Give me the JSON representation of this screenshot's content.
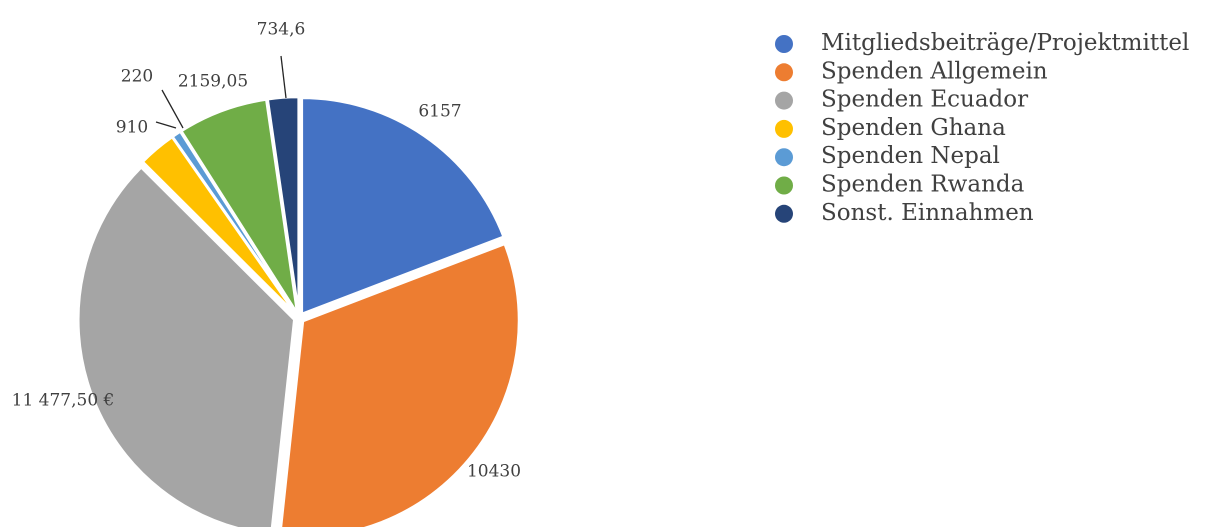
{
  "chart_data": {
    "type": "pie",
    "title": "",
    "legend_position": "right",
    "slices": [
      {
        "name": "Mitgliedsbeiträge/Projektmittel",
        "value": 6157,
        "label": "6157",
        "color": "#4472C4"
      },
      {
        "name": "Spenden Allgemein",
        "value": 10430,
        "label": "10430",
        "color": "#ED7D31"
      },
      {
        "name": "Spenden Ecuador",
        "value": 11477.5,
        "label": "11 477,50 €",
        "color": "#A5A5A5"
      },
      {
        "name": "Spenden Ghana",
        "value": 910,
        "label": "910",
        "color": "#FFC000"
      },
      {
        "name": "Spenden Nepal",
        "value": 220,
        "label": "220",
        "color": "#5B9BD5"
      },
      {
        "name": "Spenden Rwanda",
        "value": 2159.05,
        "label": "2159,05",
        "color": "#70AD47"
      },
      {
        "name": "Sonst. Einnahmen",
        "value": 734.6,
        "label": "734,6",
        "color": "#264478"
      }
    ]
  }
}
